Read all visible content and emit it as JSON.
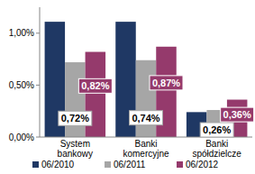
{
  "chart_data": {
    "type": "bar",
    "categories": [
      "System bankowy",
      "Banki komercyjne",
      "Banki spółdzielcze"
    ],
    "series": [
      {
        "name": "06/2010",
        "color": "#1f3864",
        "values": [
          1.11,
          1.11,
          0.24
        ]
      },
      {
        "name": "06/2011",
        "color": "#a6a6a6",
        "values": [
          0.72,
          0.74,
          0.26
        ],
        "data_labels": true,
        "value_labels": [
          "0,72%",
          "0,74%",
          "0,26%"
        ]
      },
      {
        "name": "06/2012",
        "color": "#953a6c",
        "values": [
          0.82,
          0.87,
          0.36
        ],
        "data_labels": true,
        "value_labels": [
          "0,82%",
          "0,87%",
          "0,36%"
        ]
      }
    ],
    "ylim": [
      0,
      1.25
    ],
    "yticks": [
      {
        "value": 0,
        "label": "0,00%"
      },
      {
        "value": 0.5,
        "label": "0,50%"
      },
      {
        "value": 1,
        "label": "1,00%"
      }
    ],
    "grid": false,
    "legend": "bottom"
  }
}
